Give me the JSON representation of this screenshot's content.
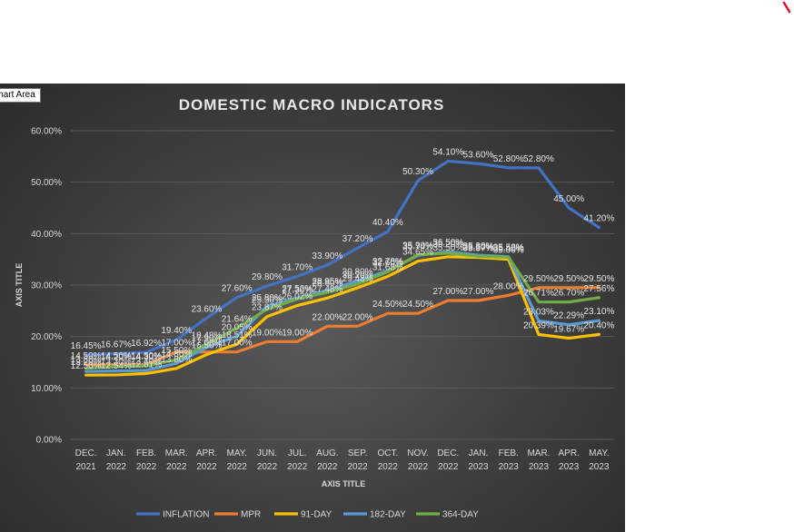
{
  "tooltip": "Chart Area",
  "colors": {
    "INFLATION": "#4472c4",
    "MPR": "#ed7d31",
    "91-DAY": "#ffc000",
    "182-DAY": "#5b9bd5",
    "364-DAY": "#70ad47",
    "grid": "#595959",
    "text": "#d9d9d9"
  },
  "chart_data": {
    "type": "line",
    "title": "DOMESTIC MACRO INDICATORS",
    "xlabel": "AXIS TITLE",
    "ylabel": "AXIS TITLE",
    "ylim": [
      0,
      60
    ],
    "yticks": [
      "0.00%",
      "10.00%",
      "20.00%",
      "30.00%",
      "40.00%",
      "50.00%",
      "60.00%"
    ],
    "categories": [
      "DEC. 2021",
      "JAN. 2022",
      "FEB. 2022",
      "MAR. 2022",
      "APR. 2022",
      "MAY. 2022",
      "JUN. 2022",
      "JUL. 2022",
      "AUG. 2022",
      "SEP. 2022",
      "OCT. 2022",
      "NOV. 2022",
      "DEC. 2022",
      "JAN. 2023",
      "FEB. 2023",
      "MAR. 2023",
      "APR. 2023",
      "MAY. 2023"
    ],
    "legend_position": "bottom",
    "grid": true,
    "series": [
      {
        "name": "INFLATION",
        "values": [
          16.45,
          16.67,
          16.92,
          19.4,
          23.6,
          27.6,
          29.8,
          31.7,
          33.9,
          37.2,
          40.4,
          50.3,
          54.1,
          53.6,
          52.8,
          52.8,
          45.0,
          41.2
        ],
        "labels": [
          "16.45%",
          "16.67%",
          "16.92%",
          "19.40%",
          "23.60%",
          "27.60%",
          "29.80%",
          "31.70%",
          "33.90%",
          "37.20%",
          "40.40%",
          "50.30%",
          "54.10%",
          "53.60%",
          "52.80%",
          "52.80%",
          "45.00%",
          "41.20%"
        ]
      },
      {
        "name": "MPR",
        "values": [
          14.5,
          14.5,
          14.5,
          17.0,
          17.0,
          17.0,
          19.0,
          19.0,
          22.0,
          22.0,
          24.5,
          24.5,
          27.0,
          27.0,
          28.0,
          29.5,
          29.5,
          29.5
        ],
        "labels": [
          "14.50%",
          "14.50%",
          "14.50%",
          "17.00%",
          "17.00%",
          "17.00%",
          "19.00%",
          "19.00%",
          "22.00%",
          "22.00%",
          "24.50%",
          "24.50%",
          "27.00%",
          "27.00%",
          "28.00%",
          "29.50%",
          "29.50%",
          "29.50%"
        ]
      },
      {
        "name": "91-DAY",
        "values": [
          12.5,
          12.54,
          12.81,
          13.8,
          16.5,
          18.51,
          23.87,
          26.02,
          27.48,
          29.48,
          31.68,
          34.65,
          35.5,
          35.37,
          35.0,
          20.39,
          19.67,
          20.4
        ],
        "labels": [
          "12.50%",
          "12.54%",
          "12.81%",
          "13.80%",
          "16.50%",
          "18.51%",
          "23.87%",
          "26.02%",
          "27.48%",
          "29.48%",
          "31.68%",
          "34.65%",
          "35.50%",
          "35.37%",
          "35.00%",
          "20.39%",
          "19.67%",
          "20.40%"
        ]
      },
      {
        "name": "182-DAY",
        "values": [
          13.2,
          13.3,
          13.4,
          14.8,
          17.9,
          20.05,
          25.8,
          27.52,
          28.95,
          30.8,
          32.78,
          35.74,
          36.5,
          35.8,
          35.52,
          23.03,
          22.29,
          23.1
        ],
        "labels": [
          "13.20%",
          "13.30%",
          "13.40%",
          "14.80%",
          "17.90%",
          "20.05%",
          "25.80%",
          "27.52%",
          "28.95%",
          "30.80%",
          "32.78%",
          "35.74%",
          "36.50%",
          "35.80%",
          "35.52%",
          "23.03%",
          "22.29%",
          "23.10%"
        ]
      },
      {
        "name": "364-DAY",
        "values": [
          13.8,
          14.2,
          14.3,
          15.5,
          18.48,
          21.64,
          25.3,
          27.3,
          28.6,
          30.2,
          32.6,
          35.9,
          36.2,
          35.6,
          35.4,
          26.71,
          26.7,
          27.56
        ],
        "labels": [
          "13.80%",
          "14.20%",
          "14.30%",
          "15.50%",
          "18.48%",
          "21.64%",
          "25.30%",
          "27.30%",
          "28.60%",
          "30.20%",
          "32.60%",
          "35.90%",
          "36.20%",
          "35.60%",
          "35.40%",
          "26.71%",
          "26.70%",
          "27.56%"
        ]
      }
    ]
  }
}
